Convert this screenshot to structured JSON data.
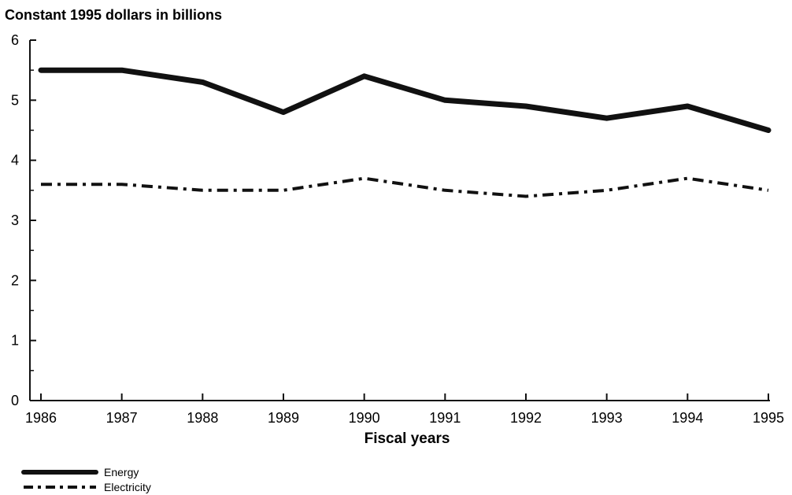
{
  "chart_data": {
    "type": "line",
    "title": "",
    "ylabel": "Constant 1995 dollars in billions",
    "xlabel": "Fiscal years",
    "ylim": [
      0,
      6
    ],
    "yticks": [
      "0",
      "1",
      "2",
      "3",
      "4",
      "5",
      "6"
    ],
    "x": [
      "1986",
      "1987",
      "1988",
      "1989",
      "1990",
      "1991",
      "1992",
      "1993",
      "1994",
      "1995"
    ],
    "grid": false,
    "legend_position": "bottom-left",
    "series": [
      {
        "name": "Energy",
        "style": "solid-thick",
        "color": "#111111",
        "values": [
          5.5,
          5.5,
          5.3,
          4.8,
          5.4,
          5.0,
          4.9,
          4.7,
          4.9,
          4.5
        ]
      },
      {
        "name": "Electricity",
        "style": "dash-dot",
        "color": "#111111",
        "values": [
          3.6,
          3.6,
          3.5,
          3.5,
          3.7,
          3.5,
          3.4,
          3.5,
          3.7,
          3.5
        ]
      }
    ]
  }
}
